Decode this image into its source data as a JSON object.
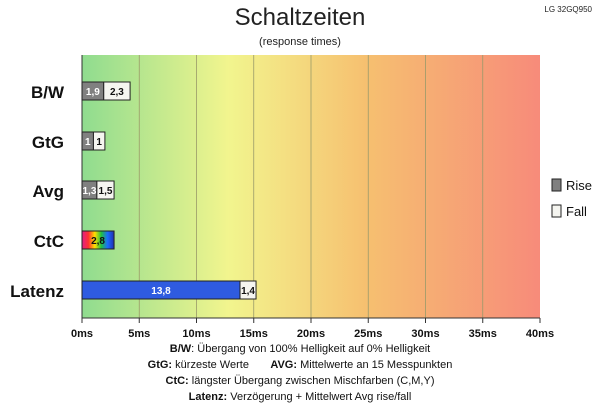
{
  "model_label": "LG 32GQ950",
  "footnotes": {
    "bw_key": "B/W",
    "bw_text": ":  Übergang von 100% Helligkeit auf 0% Helligkeit",
    "gtg_key": "GtG:",
    "gtg_text": " kürzeste  Werte",
    "avg_key": "AVG:",
    "avg_text": " Mittelwerte  an 15 Messpunkten",
    "ctc_key": "CtC:",
    "ctc_text": " längster Übergang  zwischen Mischfarben  (C,M,Y)",
    "latenz_key": "Latenz:",
    "latenz_text": " Verzögerung  + Mittelwert Avg rise/fall"
  },
  "colors": {
    "rise": "#808080",
    "fall": "#f5f5f0",
    "latenz": "#2f5be0",
    "gradient": [
      "#8fdc8f",
      "#f2f58e",
      "#f6c070",
      "#f78b7a"
    ]
  },
  "chart_data": {
    "type": "bar",
    "orientation": "horizontal",
    "stacked": true,
    "title": "Schaltzeiten",
    "subtitle": "(response times)",
    "categories": [
      "B/W",
      "GtG",
      "Avg",
      "CtC",
      "Latenz"
    ],
    "series": [
      {
        "name": "Rise",
        "values": [
          1.9,
          1.0,
          1.3,
          null,
          null
        ]
      },
      {
        "name": "Fall",
        "values": [
          2.3,
          1.0,
          1.5,
          null,
          1.4
        ]
      }
    ],
    "ctc": {
      "value": 2.8,
      "label": "2,8"
    },
    "latenz_delay": {
      "value": 13.8,
      "label": "13,8"
    },
    "data_labels": {
      "rise": [
        "1,9",
        "1",
        "1,3",
        null,
        null
      ],
      "fall": [
        "2,3",
        "1",
        "1,5",
        null,
        "1,4"
      ]
    },
    "xlim": [
      0,
      40
    ],
    "xticks": [
      0,
      5,
      10,
      15,
      20,
      25,
      30,
      35,
      40
    ],
    "xtick_labels": [
      "0ms",
      "5ms",
      "10ms",
      "15ms",
      "20ms",
      "25ms",
      "30ms",
      "35ms",
      "40ms"
    ],
    "grid": true,
    "legend": {
      "position": "right",
      "entries": [
        "Rise",
        "Fall"
      ]
    }
  }
}
